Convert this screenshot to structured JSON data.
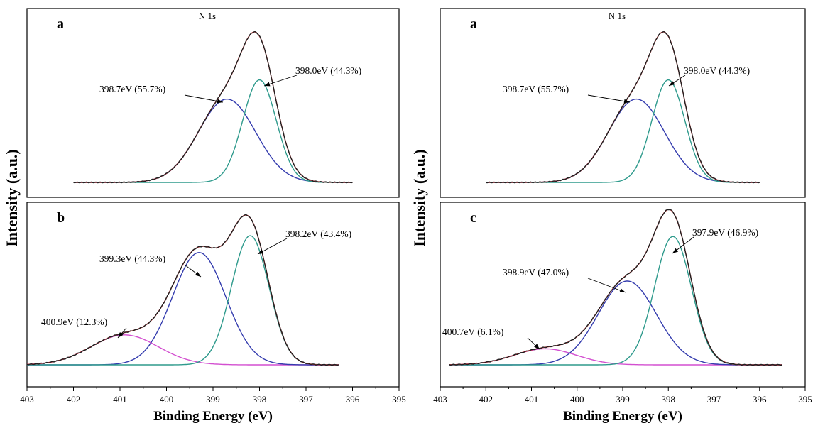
{
  "chart_data": {
    "type": "line",
    "xlabel": "Binding Energy (eV)",
    "ylabel": "Intensity (a.u.)",
    "xlim": [
      403,
      395
    ],
    "x_ticks": [
      "403",
      "402",
      "401",
      "400",
      "399",
      "398",
      "397",
      "396",
      "395"
    ],
    "colors": {
      "envelope": "#e0252a",
      "measured": "#222222",
      "comp_low_be": "#2e9a8c",
      "comp_mid_be": "#343cae",
      "comp_high_be": "#d34fd0"
    },
    "panels": [
      {
        "id": "left-a",
        "letter": "a",
        "title": "N 1s",
        "x_range": [
          402,
          396
        ],
        "peaks": [
          {
            "center": 398.7,
            "percent": 55.7,
            "label": "398.7eV (55.7%)",
            "component": "comp_mid_be"
          },
          {
            "center": 398.0,
            "percent": 44.3,
            "label": "398.0eV (44.3%)",
            "component": "comp_low_be"
          }
        ]
      },
      {
        "id": "left-b",
        "letter": "b",
        "title": "",
        "x_range": [
          403,
          396.3
        ],
        "peaks": [
          {
            "center": 400.9,
            "percent": 12.3,
            "label": "400.9eV (12.3%)",
            "component": "comp_high_be"
          },
          {
            "center": 399.3,
            "percent": 44.3,
            "label": "399.3eV (44.3%)",
            "component": "comp_mid_be"
          },
          {
            "center": 398.2,
            "percent": 43.4,
            "label": "398.2eV (43.4%)",
            "component": "comp_low_be"
          }
        ]
      },
      {
        "id": "right-a",
        "letter": "a",
        "title": "N 1s",
        "x_range": [
          402,
          396
        ],
        "peaks": [
          {
            "center": 398.7,
            "percent": 55.7,
            "label": "398.7eV (55.7%)",
            "component": "comp_mid_be"
          },
          {
            "center": 398.0,
            "percent": 44.3,
            "label": "398.0eV (44.3%)",
            "component": "comp_low_be"
          }
        ]
      },
      {
        "id": "right-c",
        "letter": "c",
        "title": "",
        "x_range": [
          402.8,
          395.5
        ],
        "peaks": [
          {
            "center": 400.7,
            "percent": 6.1,
            "label": "400.7eV (6.1%)",
            "component": "comp_high_be"
          },
          {
            "center": 398.9,
            "percent": 47.0,
            "label": "398.9eV (47.0%)",
            "component": "comp_mid_be"
          },
          {
            "center": 397.9,
            "percent": 46.9,
            "label": "397.9eV (46.9%)",
            "component": "comp_low_be"
          }
        ]
      }
    ]
  }
}
